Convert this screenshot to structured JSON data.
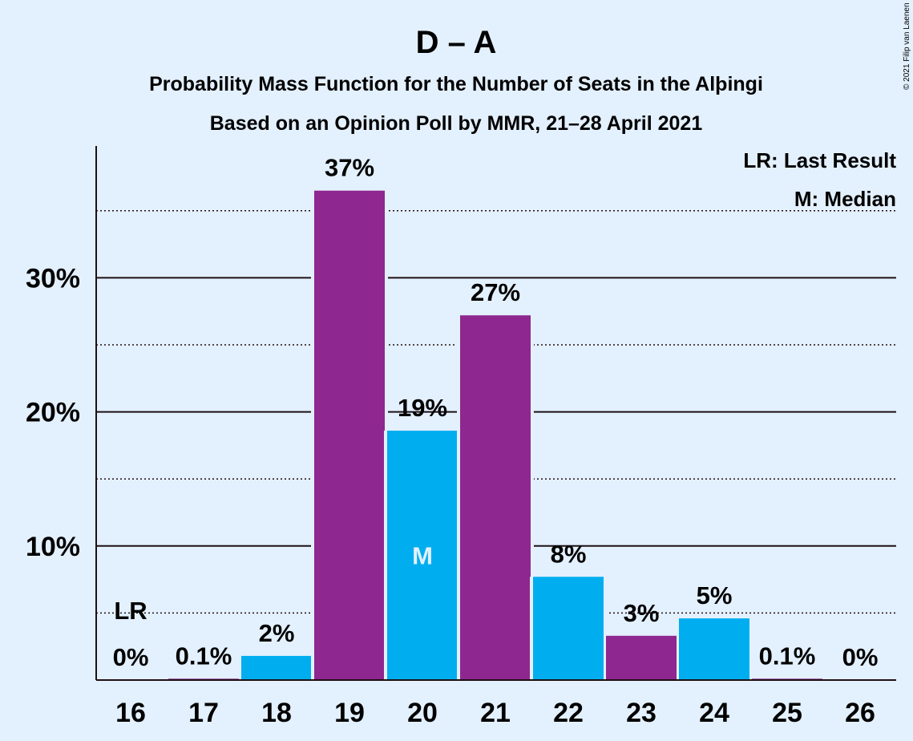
{
  "chart_data": {
    "type": "bar",
    "title": "D – A",
    "subtitle": "Probability Mass Function for the Number of Seats in the Alþingi",
    "subtitle2": "Based on an Opinion Poll by MMR, 21–28 April 2021",
    "copyright": "© 2021 Filip van Laenen",
    "categories": [
      "16",
      "17",
      "18",
      "19",
      "20",
      "21",
      "22",
      "23",
      "24",
      "25",
      "26"
    ],
    "values": [
      0,
      0.1,
      1.8,
      36.5,
      18.6,
      27.2,
      7.7,
      3.3,
      4.6,
      0.1,
      0
    ],
    "data_labels": [
      "0%",
      "0.1%",
      "2%",
      "37%",
      "19%",
      "27%",
      "8%",
      "3%",
      "5%",
      "0.1%",
      "0%"
    ],
    "ylim": [
      0,
      39
    ],
    "y_ticks": [
      10,
      20,
      30
    ],
    "y_tick_labels": [
      "10%",
      "20%",
      "30%"
    ],
    "dotted_gridlines": [
      5,
      15,
      25,
      35
    ],
    "bar_colors": [
      "#00aeef",
      "#8e278f",
      "#00aeef",
      "#8e278f",
      "#00aeef",
      "#8e278f",
      "#00aeef",
      "#8e278f",
      "#00aeef",
      "#8e278f",
      "#00aeef"
    ],
    "median_index": 4,
    "median_marker": "M",
    "last_result_index": 0,
    "last_result_marker": "LR",
    "legend": [
      "LR: Last Result",
      "M: Median"
    ],
    "legend_position": "top-right"
  }
}
